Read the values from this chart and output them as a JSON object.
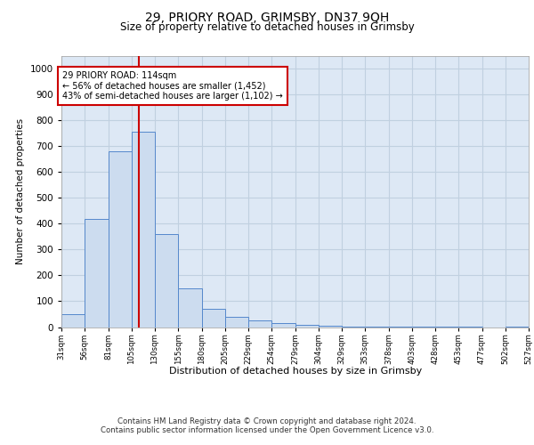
{
  "title1": "29, PRIORY ROAD, GRIMSBY, DN37 9QH",
  "title2": "Size of property relative to detached houses in Grimsby",
  "xlabel": "Distribution of detached houses by size in Grimsby",
  "ylabel": "Number of detached properties",
  "footer1": "Contains HM Land Registry data © Crown copyright and database right 2024.",
  "footer2": "Contains public sector information licensed under the Open Government Licence v3.0.",
  "annotation_title": "29 PRIORY ROAD: 114sqm",
  "annotation_line1": "← 56% of detached houses are smaller (1,452)",
  "annotation_line2": "43% of semi-detached houses are larger (1,102) →",
  "property_size": 114,
  "bin_starts": [
    31,
    56,
    81,
    106,
    131,
    156,
    181,
    206,
    231,
    256,
    281,
    306,
    331,
    356,
    381,
    406,
    431,
    456,
    481,
    506
  ],
  "bar_values": [
    50,
    420,
    680,
    755,
    360,
    150,
    70,
    38,
    25,
    15,
    10,
    5,
    3,
    2,
    1,
    1,
    1,
    1,
    0,
    1
  ],
  "tick_labels": [
    "31sqm",
    "56sqm",
    "81sqm",
    "105sqm",
    "130sqm",
    "155sqm",
    "180sqm",
    "205sqm",
    "229sqm",
    "254sqm",
    "279sqm",
    "304sqm",
    "329sqm",
    "353sqm",
    "378sqm",
    "403sqm",
    "428sqm",
    "453sqm",
    "477sqm",
    "502sqm",
    "527sqm"
  ],
  "bar_color": "#ccdcef",
  "bar_edge_color": "#5588cc",
  "vline_color": "#cc0000",
  "annotation_box_color": "#cc0000",
  "grid_color": "#c0d0e0",
  "bg_color": "#dde8f5",
  "ylim": [
    0,
    1050
  ],
  "yticks": [
    0,
    100,
    200,
    300,
    400,
    500,
    600,
    700,
    800,
    900,
    1000
  ]
}
